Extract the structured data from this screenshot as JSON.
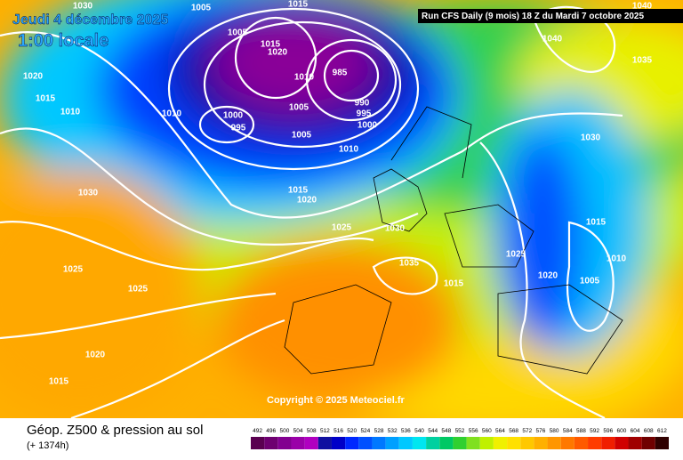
{
  "header": {
    "date": "Jeudi 4 décembre 2025",
    "time": "1:00 locale",
    "run": "Run CFS Daily (9 mois) 18 Z du Mardi 7 octobre 2025"
  },
  "isobar_labels": [
    "1030",
    "1005",
    "1015",
    "1040",
    "1005",
    "1015",
    "1020",
    "1040",
    "1035",
    "1020",
    "985",
    "1010",
    "1015",
    "1010",
    "1010",
    "1005",
    "990",
    "995",
    "1000",
    "995",
    "1000",
    "1005",
    "1030",
    "1010",
    "1030",
    "1015",
    "1020",
    "1015",
    "1025",
    "1030",
    "1025",
    "1035",
    "1025",
    "1010",
    "1020",
    "1025",
    "1015",
    "1005",
    "1020",
    "1015"
  ],
  "copyright": "Copyright © 2025 Meteociel.fr",
  "footer": {
    "title": "Géop. Z500 & pression au sol",
    "lead": "(+ 1374h)"
  },
  "scale": {
    "values": [
      492,
      496,
      500,
      504,
      508,
      512,
      516,
      520,
      524,
      528,
      532,
      536,
      540,
      544,
      548,
      552,
      556,
      560,
      564,
      568,
      572,
      576,
      580,
      584,
      588,
      592,
      596,
      600,
      604,
      608,
      612
    ],
    "colors": [
      "#5a0050",
      "#6e0070",
      "#820090",
      "#9a00a8",
      "#b000c0",
      "#1010a0",
      "#0000c8",
      "#0028ff",
      "#0050ff",
      "#0078ff",
      "#00a0ff",
      "#00c8ff",
      "#00e6f0",
      "#00d0a0",
      "#00c864",
      "#30d030",
      "#80e020",
      "#c0f000",
      "#f0f000",
      "#ffe000",
      "#ffc800",
      "#ffb000",
      "#ff9600",
      "#ff7800",
      "#ff5a00",
      "#ff3c00",
      "#f01e00",
      "#d00000",
      "#a00000",
      "#700000",
      "#300000"
    ]
  }
}
